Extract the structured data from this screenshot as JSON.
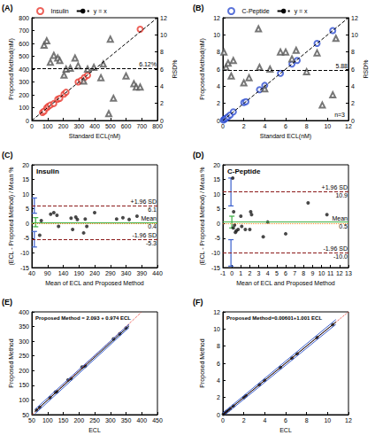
{
  "chart_data": [
    {
      "type": "scatter",
      "panel_label": "(A)",
      "xlabel": "Standard ECL(nM)",
      "ylabel": "Proposed Method(nM)",
      "y2label": "RSD%",
      "xlim": [
        0,
        800
      ],
      "xticks": [
        0,
        100,
        200,
        300,
        400,
        500,
        600,
        700,
        800
      ],
      "ylim": [
        0,
        800
      ],
      "yticks": [
        0,
        100,
        200,
        300,
        400,
        500,
        600,
        700,
        800
      ],
      "y2lim": [
        0,
        12
      ],
      "y2ticks": [
        0,
        2,
        4,
        6,
        8,
        10,
        12
      ],
      "legend": "upper left",
      "series": [
        {
          "name": "Insulin",
          "type": "scatter",
          "marker": "open_circle",
          "color": "#e8392f",
          "x": [
            68,
            78,
            95,
            105,
            118,
            140,
            165,
            178,
            205,
            218,
            295,
            315,
            335,
            355,
            690
          ],
          "values": [
            62,
            72,
            98,
            110,
            120,
            132,
            165,
            172,
            205,
            220,
            300,
            312,
            335,
            352,
            710
          ]
        },
        {
          "name": "y = x",
          "type": "line",
          "line_style": "dashed",
          "color": "#000000",
          "x": [
            0,
            800
          ],
          "values": [
            0,
            800
          ]
        },
        {
          "type": "scatter",
          "marker": "open_triangle",
          "color": "#555555",
          "axis": "y2",
          "x": [
            78,
            95,
            118,
            140,
            165,
            178,
            205,
            218,
            245,
            275,
            295,
            330,
            355,
            395,
            440,
            455,
            490,
            500,
            520,
            600,
            650,
            665,
            690
          ],
          "values": [
            8.8,
            9.3,
            6.8,
            7.6,
            7.3,
            7.0,
            5.3,
            6.0,
            6.1,
            7.3,
            6.4,
            4.6,
            6.0,
            6.2,
            5.0,
            6.6,
            0.8,
            9.5,
            2.6,
            5.2,
            4.3,
            3.9,
            3.9
          ]
        }
      ],
      "reference_lines": [
        {
          "value": 6.12,
          "axis": "y2",
          "label": "6.12%",
          "color": "#000000",
          "line_style": "dashed"
        }
      ]
    },
    {
      "type": "scatter",
      "panel_label": "(B)",
      "xlabel": "Standard ECL(nM)",
      "ylabel": "Proposed Method(nM)",
      "y2label": "RSD%",
      "xlim": [
        0,
        12
      ],
      "xticks": [
        0,
        2,
        4,
        6,
        8,
        10,
        12
      ],
      "ylim": [
        0,
        12
      ],
      "yticks": [
        0,
        2,
        4,
        6,
        8,
        10,
        12
      ],
      "y2lim": [
        0,
        12
      ],
      "y2ticks": [
        0,
        2,
        4,
        6,
        8,
        10,
        12
      ],
      "legend": "upper left",
      "note": "n=3",
      "series": [
        {
          "name": "C-Peptide",
          "type": "scatter",
          "marker": "open_circle",
          "color": "#2f4fd0",
          "x": [
            0.05,
            0.15,
            0.25,
            0.35,
            0.5,
            0.7,
            1.0,
            2.0,
            2.2,
            3.5,
            4.0,
            5.5,
            6.6,
            7.1,
            9.0,
            10.5
          ],
          "values": [
            0.05,
            0.15,
            0.22,
            0.3,
            0.45,
            0.65,
            1.0,
            2.1,
            2.2,
            3.6,
            4.1,
            5.5,
            6.6,
            7.0,
            9.0,
            10.5
          ]
        },
        {
          "name": "y = x",
          "type": "line",
          "line_style": "dashed",
          "color": "#000000",
          "x": [
            0,
            12
          ],
          "values": [
            0,
            12
          ]
        },
        {
          "type": "scatter",
          "marker": "open_triangle",
          "color": "#555555",
          "axis": "y2",
          "x": [
            0.1,
            0.3,
            0.5,
            0.8,
            1.0,
            2.0,
            2.5,
            3.4,
            3.5,
            4.0,
            4.5,
            5.5,
            6.0,
            6.6,
            7.0,
            8.0,
            9.0,
            9.5,
            10.5,
            10.8
          ],
          "values": [
            8.0,
            6.2,
            6.7,
            5.2,
            7.0,
            4.4,
            5.0,
            10.7,
            6.2,
            3.7,
            6.0,
            8.0,
            8.0,
            7.2,
            8.2,
            5.7,
            7.9,
            1.8,
            3.0,
            9.6
          ]
        }
      ],
      "reference_lines": [
        {
          "value": 5.88,
          "axis": "y2",
          "label": "5.88",
          "color": "#000000",
          "line_style": "dashed"
        }
      ]
    },
    {
      "type": "scatter",
      "panel_label": "(C)",
      "title": "Insulin",
      "xlabel": "Mean of ECL and Proposed Method",
      "ylabel": "(ECL - Proposed Method) / Mean %",
      "xlim": [
        40,
        440
      ],
      "xticks": [
        40,
        90,
        140,
        190,
        240,
        290,
        340,
        390,
        440
      ],
      "ylim": [
        -15,
        20
      ],
      "yticks": [
        -15,
        -10,
        -5,
        0,
        5,
        10,
        15,
        20
      ],
      "series": [
        {
          "type": "scatter",
          "marker": "circle",
          "color": "#1a1a1a",
          "x": [
            65,
            70,
            100,
            110,
            120,
            125,
            165,
            170,
            180,
            185,
            205,
            210,
            215,
            240,
            310,
            330,
            350,
            375
          ],
          "values": [
            -4.0,
            1.0,
            3.2,
            3.7,
            2.8,
            -1.0,
            1.8,
            -2.0,
            2.2,
            1.4,
            -3.2,
            1.5,
            -1.0,
            3.7,
            1.5,
            2.0,
            1.4,
            2.5
          ]
        }
      ],
      "reference_lines": [
        {
          "value": 6.1,
          "label": "+1.96 SD",
          "value_label": "6.1",
          "color": "#8b1a1a",
          "line_style": "dashed"
        },
        {
          "value": 0.4,
          "label": "Mean",
          "value_label": "0.4",
          "color": "#3cb043",
          "line_style": "solid"
        },
        {
          "value": -5.3,
          "label": "-1.96 SD",
          "value_label": "-5.3",
          "color": "#8b1a1a",
          "line_style": "dashed"
        },
        {
          "value": 0,
          "color": "#f08a24",
          "line_style": "dotted"
        }
      ],
      "error_bars": [
        {
          "x": 48,
          "low": 3.5,
          "high": 8.7,
          "color": "#3a5fcd"
        },
        {
          "x": 52,
          "low": -1.1,
          "high": 2.0,
          "color": "#3cb043"
        },
        {
          "x": 48,
          "low": -8.0,
          "high": -2.7,
          "color": "#3a5fcd"
        }
      ]
    },
    {
      "type": "scatter",
      "panel_label": "(D)",
      "title": "C-Peptide",
      "xlabel": "Mean of ECL and Proposed Method",
      "ylabel": "(ECL - Proposed Method) / Mean %",
      "xlim": [
        -1,
        13
      ],
      "xticks": [
        -1,
        0,
        1,
        2,
        3,
        4,
        5,
        6,
        7,
        8,
        9,
        10,
        11,
        12,
        13
      ],
      "ylim": [
        -15,
        20
      ],
      "yticks": [
        -15,
        -10,
        -5,
        0,
        5,
        10,
        15,
        20
      ],
      "series": [
        {
          "type": "scatter",
          "marker": "circle",
          "color": "#1a1a1a",
          "x": [
            0.1,
            0.15,
            0.2,
            0.3,
            0.4,
            0.5,
            0.7,
            1.0,
            1.1,
            1.5,
            2.0,
            2.1,
            2.2,
            3.5,
            4.0,
            6.0,
            8.5,
            10.6
          ],
          "values": [
            15.5,
            -1.5,
            4.0,
            -0.5,
            -3.0,
            -2.5,
            -2.0,
            2.5,
            -1.0,
            -2.0,
            -2.0,
            4.0,
            3.0,
            -4.5,
            0.5,
            -3.5,
            7.0,
            3.0
          ]
        }
      ],
      "reference_lines": [
        {
          "value": 10.9,
          "label": "+1.96 SD",
          "value_label": "10.9",
          "color": "#8b1a1a",
          "line_style": "dashed"
        },
        {
          "value": 0.5,
          "label": "Mean",
          "value_label": "0.5",
          "color": "#3cb043",
          "line_style": "solid"
        },
        {
          "value": -10.0,
          "label": "-1.96 SD",
          "value_label": "-10.0",
          "color": "#8b1a1a",
          "line_style": "dashed"
        },
        {
          "value": 0,
          "color": "#f08a24",
          "line_style": "dotted"
        }
      ],
      "error_bars": [
        {
          "x": -0.1,
          "low": 6.0,
          "high": 15.5,
          "color": "#3a5fcd"
        },
        {
          "x": 0.0,
          "low": -1.5,
          "high": 2.5,
          "color": "#3cb043"
        },
        {
          "x": -0.1,
          "low": -14.5,
          "high": -5.5,
          "color": "#3a5fcd"
        }
      ]
    },
    {
      "type": "scatter",
      "panel_label": "(E)",
      "annotation": "Proposed Method = 2.093 + 0.974 ECL",
      "xlabel": "ECL",
      "ylabel": "Proposed Method",
      "xlim": [
        50,
        450
      ],
      "xticks": [
        50,
        100,
        150,
        200,
        250,
        300,
        350,
        400,
        450
      ],
      "ylim": [
        50,
        400
      ],
      "yticks": [
        50,
        100,
        150,
        200,
        250,
        300,
        350,
        400
      ],
      "series": [
        {
          "type": "line",
          "line_style": "dotted",
          "color": "#e8392f",
          "x": [
            50,
            400
          ],
          "values": [
            50,
            400
          ]
        },
        {
          "type": "line",
          "line_style": "solid",
          "color": "#3a5fcd",
          "x": [
            60,
            360
          ],
          "values": [
            68,
            358
          ]
        },
        {
          "type": "line",
          "line_style": "solid",
          "color": "#3a5fcd",
          "x": [
            60,
            360
          ],
          "values": [
            53,
            347
          ]
        },
        {
          "type": "line",
          "line_style": "solid",
          "color": "#000000",
          "x": [
            60,
            360
          ],
          "values": [
            60.5,
            352.7
          ]
        },
        {
          "type": "scatter",
          "marker": "circle",
          "color": "#1a1a1a",
          "x": [
            65,
            75,
            108,
            125,
            130,
            165,
            175,
            210,
            220,
            310,
            330,
            350
          ],
          "values": [
            66,
            75,
            108,
            127,
            128,
            168,
            172,
            212,
            215,
            308,
            325,
            345
          ]
        }
      ]
    },
    {
      "type": "scatter",
      "panel_label": "(F)",
      "annotation": "Proposed Method=0.00601+1.001 ECL",
      "xlabel": "ECL",
      "ylabel": "Proposed Method",
      "xlim": [
        0,
        12
      ],
      "xticks": [
        0,
        2,
        4,
        6,
        8,
        10,
        12
      ],
      "ylim": [
        0,
        12
      ],
      "yticks": [
        0,
        2,
        4,
        6,
        8,
        10,
        12
      ],
      "series": [
        {
          "type": "line",
          "line_style": "dotted",
          "color": "#e8392f",
          "x": [
            0,
            12
          ],
          "values": [
            0,
            12
          ]
        },
        {
          "type": "line",
          "line_style": "solid",
          "color": "#3a5fcd",
          "x": [
            0,
            10.8
          ],
          "values": [
            0.2,
            11.1
          ]
        },
        {
          "type": "line",
          "line_style": "solid",
          "color": "#3a5fcd",
          "x": [
            0.2,
            10.8
          ],
          "values": [
            0,
            10.55
          ]
        },
        {
          "type": "line",
          "line_style": "solid",
          "color": "#000000",
          "x": [
            0,
            10.8
          ],
          "values": [
            0.006,
            10.82
          ]
        },
        {
          "type": "scatter",
          "marker": "circle",
          "color": "#1a1a1a",
          "x": [
            0.05,
            0.15,
            0.25,
            0.35,
            0.5,
            0.7,
            1.0,
            2.0,
            2.2,
            3.5,
            4.0,
            5.5,
            6.6,
            7.1,
            9.0,
            10.5
          ],
          "values": [
            0.06,
            0.16,
            0.26,
            0.36,
            0.5,
            0.7,
            1.0,
            2.0,
            2.2,
            3.5,
            4.0,
            5.5,
            6.6,
            7.1,
            9.0,
            10.5
          ]
        }
      ]
    }
  ]
}
